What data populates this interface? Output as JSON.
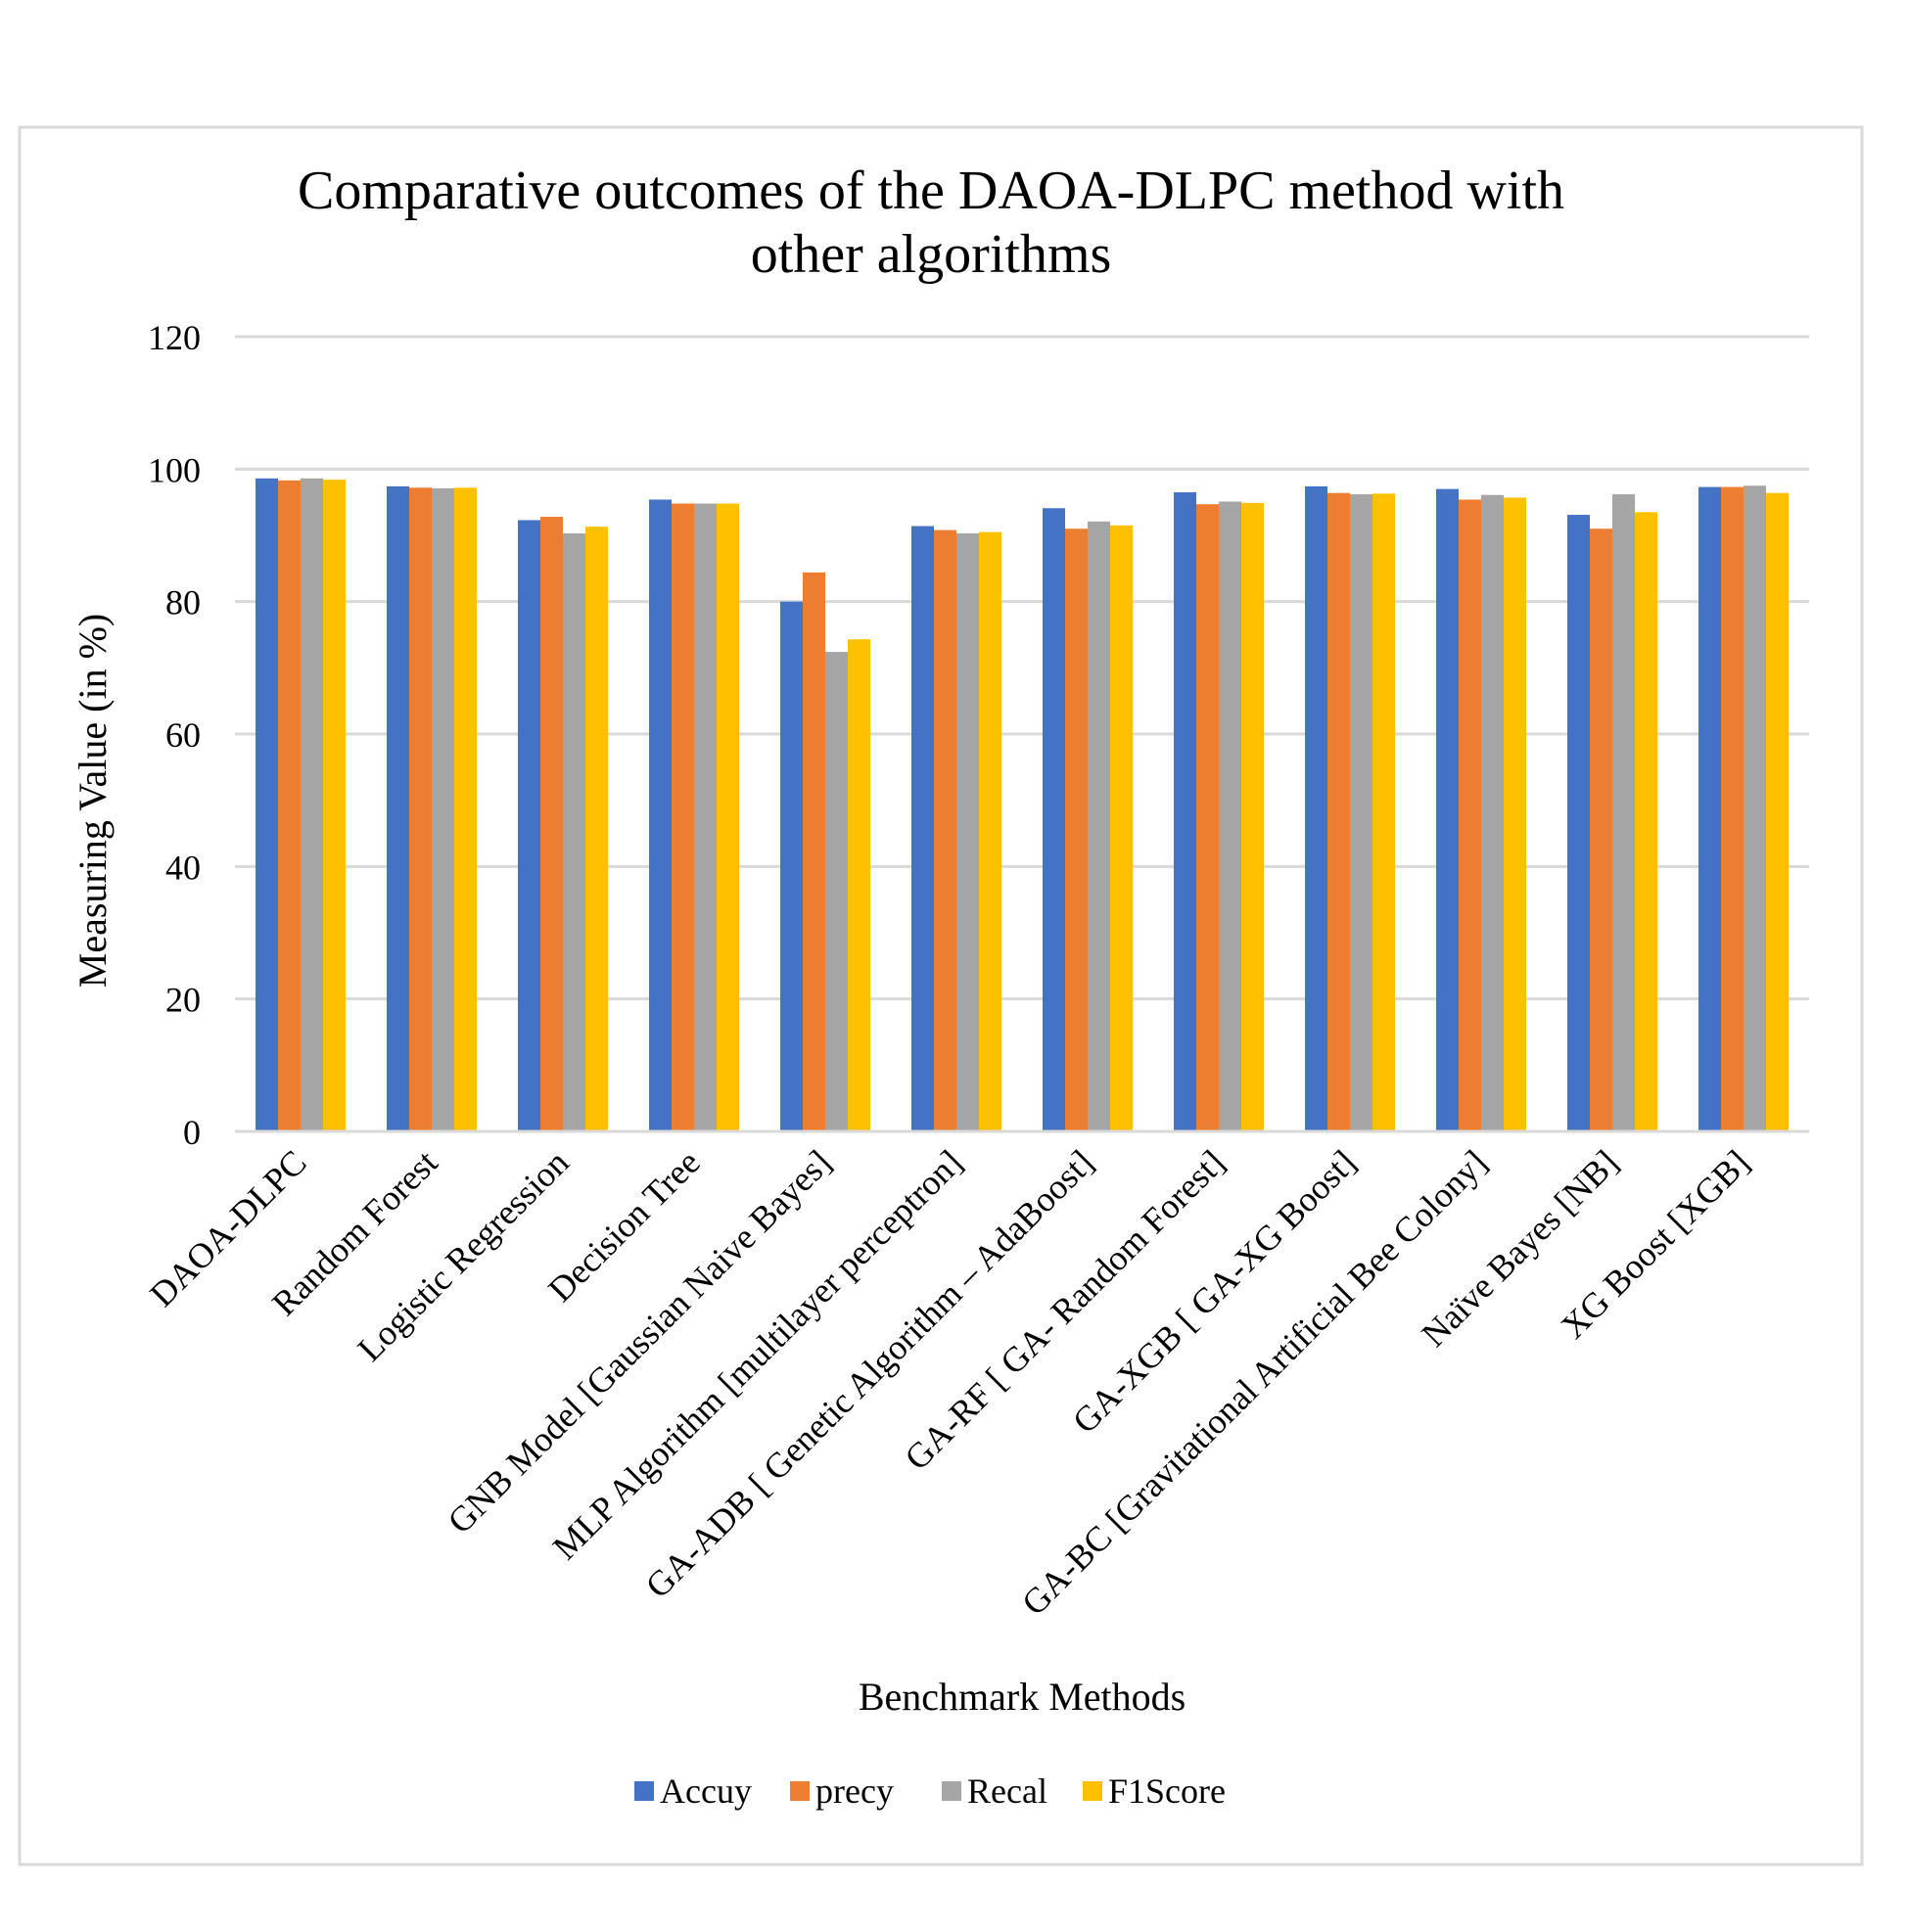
{
  "chart_data": {
    "type": "bar",
    "title_lines": [
      "Comparative outcomes of the DAOA-DLPC method with",
      "other algorithms"
    ],
    "xlabel": "Benchmark Methods",
    "ylabel": "Measuring Value (in %)",
    "ylim": [
      0,
      120
    ],
    "yticks": [
      "0",
      "20",
      "40",
      "60",
      "80",
      "100",
      "120"
    ],
    "grid": true,
    "legend_position": "bottom",
    "categories": [
      "DAOA-DLPC",
      "Random Forest",
      "Logistic Regression",
      "Decision Tree",
      "GNB Model [Gaussian Naive Bayes]",
      "MLP Algorithm [multilayer perceptron]",
      "GA-ADB [ Genetic Algorithm – AdaBoost]",
      "GA-RF [ GA- Random Forest]",
      "GA-XGB [ GA-XG Boost]",
      "GA-BC [Gravitational Artificial Bee Colony]",
      "Naïve Bayes [NB]",
      "XG Boost [XGB]"
    ],
    "series": [
      {
        "name": "Accuy",
        "color": "#4472C4",
        "values": [
          98.6,
          97.4,
          92.3,
          95.4,
          80.0,
          91.4,
          94.1,
          96.5,
          97.4,
          97.0,
          93.1,
          97.3
        ]
      },
      {
        "name": "precy",
        "color": "#ED7D31",
        "values": [
          98.3,
          97.2,
          92.8,
          94.8,
          84.4,
          90.8,
          91.0,
          94.7,
          96.4,
          95.4,
          91.0,
          97.3
        ]
      },
      {
        "name": "Recal",
        "color": "#A5A5A5",
        "values": [
          98.6,
          97.1,
          90.3,
          94.8,
          72.4,
          90.3,
          92.1,
          95.1,
          96.2,
          96.1,
          96.2,
          97.5
        ]
      },
      {
        "name": "F1Score",
        "color": "#FFC000",
        "values": [
          98.4,
          97.2,
          91.3,
          94.8,
          74.3,
          90.5,
          91.5,
          94.9,
          96.3,
          95.7,
          93.5,
          96.4
        ]
      }
    ]
  }
}
